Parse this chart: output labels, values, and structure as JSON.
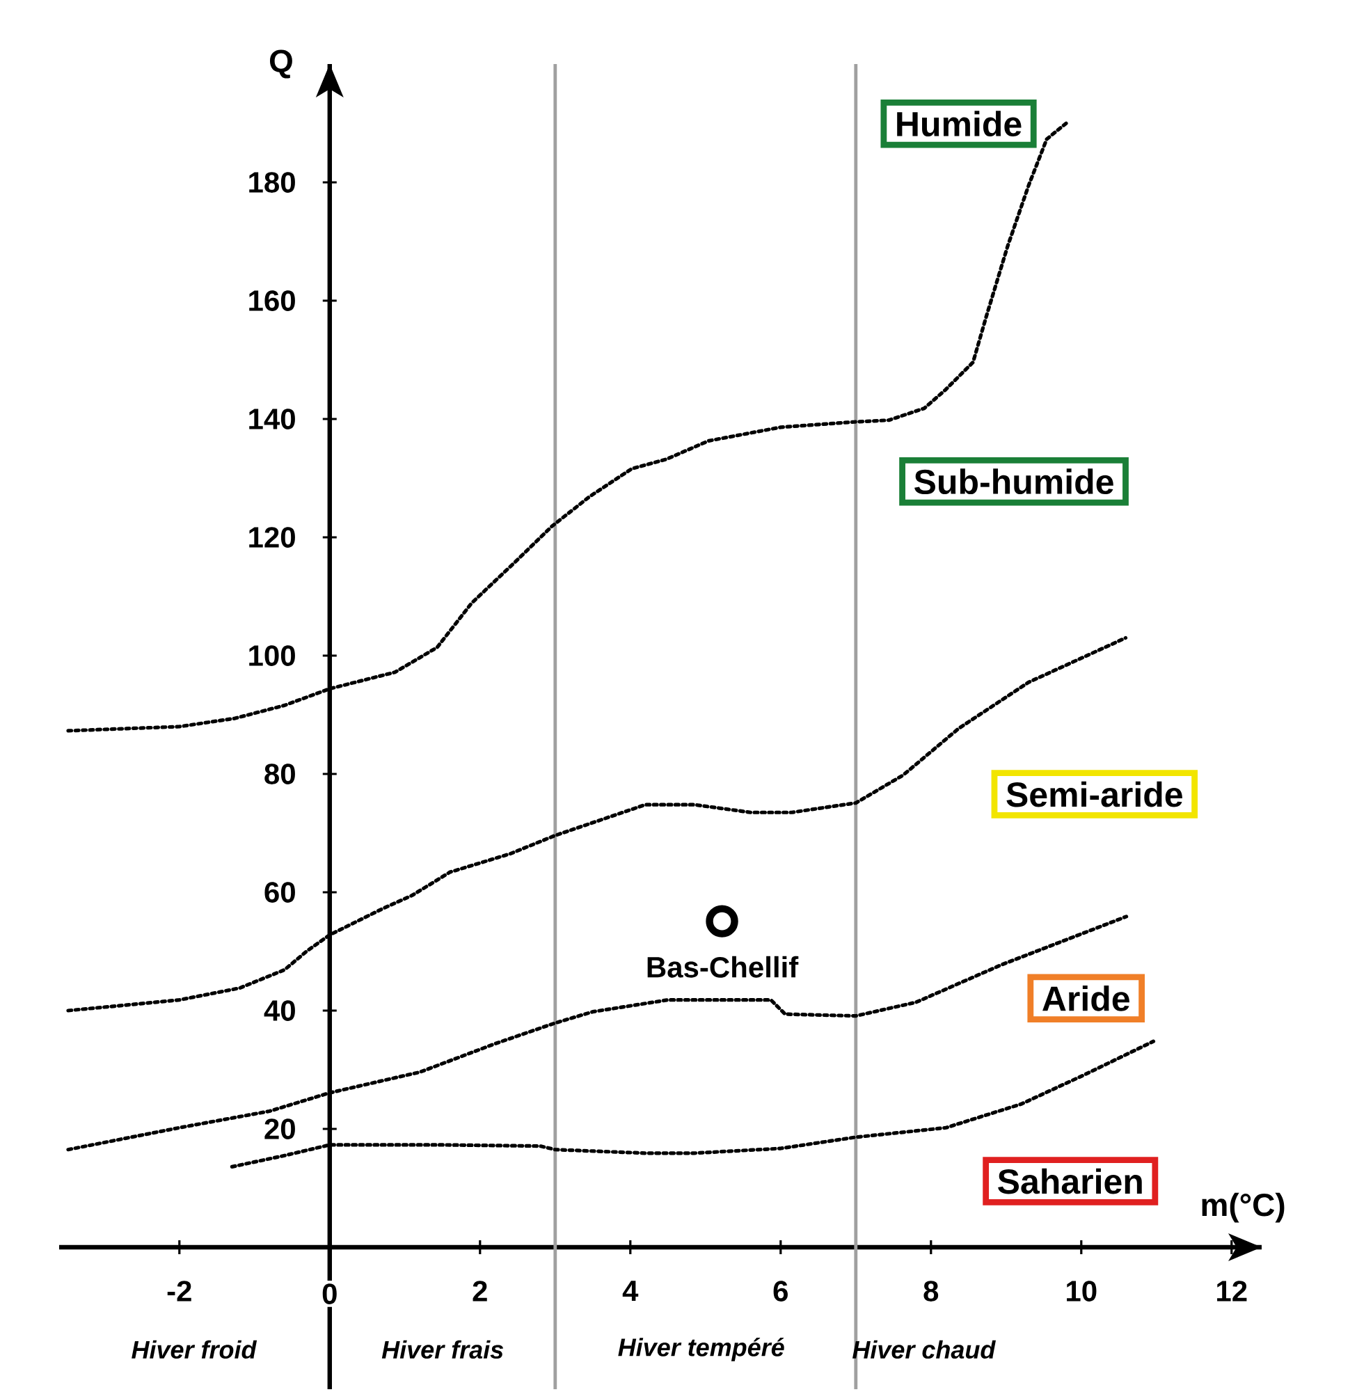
{
  "chart_data": {
    "type": "line",
    "xlabel": "m(°C)",
    "ylabel": "Q",
    "xlim": [
      -3.6,
      12.4
    ],
    "ylim": [
      -24,
      200
    ],
    "xticks": [
      -2,
      0,
      2,
      4,
      6,
      8,
      10,
      12
    ],
    "yticks": [
      20,
      40,
      60,
      80,
      100,
      120,
      140,
      160,
      180
    ],
    "line_style": "dotted",
    "marker": "none",
    "series": [
      {
        "color": "#000000",
        "x": [
          -3.48,
          -2,
          -1.26,
          -0.6,
          0,
          0.87,
          1.43,
          1.89,
          2.44,
          2.96,
          3.46,
          4.02,
          4.48,
          5.04,
          6,
          6.98,
          7.44,
          7.91,
          8.19,
          8.56,
          8.74,
          9.02,
          9.3,
          9.54,
          9.8
        ],
        "values": [
          87.3,
          88,
          89.4,
          91.6,
          94.4,
          97.2,
          101.4,
          108.9,
          115.5,
          121.9,
          126.9,
          131.6,
          133.2,
          136.3,
          138.6,
          139.5,
          139.8,
          141.8,
          144.9,
          149.6,
          157.5,
          169.2,
          179.5,
          187.3,
          190
        ]
      },
      {
        "color": "#000000",
        "x": [
          -3.48,
          -2,
          -1.2,
          -0.6,
          -0.3,
          0,
          0.7,
          1.1,
          1.6,
          2.4,
          3,
          4.2,
          4.85,
          5.6,
          6.15,
          7,
          7.63,
          8.37,
          9.3,
          10.59
        ],
        "values": [
          40,
          41.8,
          43.8,
          46.9,
          50.1,
          52.8,
          57.2,
          59.5,
          63.4,
          66.5,
          69.6,
          74.8,
          74.8,
          73.5,
          73.5,
          75.1,
          79.8,
          87.7,
          95.5,
          103
        ]
      },
      {
        "color": "#000000",
        "x": [
          -3.48,
          -2,
          -0.8,
          0,
          1.2,
          2.2,
          3,
          3.5,
          4.5,
          5.87,
          6.06,
          7,
          7.8,
          8.93,
          10.6
        ],
        "values": [
          16.5,
          20.2,
          23,
          26.1,
          29.6,
          34.4,
          37.9,
          39.8,
          41.8,
          41.8,
          39.4,
          39.1,
          41.4,
          47.7,
          55.9
        ]
      },
      {
        "color": "#000000",
        "x": [
          -1.3,
          -0.6,
          0,
          1.5,
          2.8,
          3,
          4.2,
          4.85,
          6,
          7,
          8.2,
          9.2,
          10,
          10.96
        ],
        "values": [
          13.6,
          15.5,
          17.3,
          17.3,
          17.1,
          16.5,
          15.9,
          15.9,
          16.7,
          18.6,
          20.2,
          24.2,
          28.9,
          34.8
        ]
      },
      {
        "type": "scatter",
        "name": "Bas-Chellif",
        "color": "#000000",
        "marker": "circle",
        "x": [
          5.22
        ],
        "values": [
          55.1
        ]
      }
    ],
    "ref_lines": [
      {
        "axis": "x",
        "value": 3,
        "color": "#a0a0a0"
      },
      {
        "axis": "x",
        "value": 7,
        "color": "#a0a0a0"
      }
    ],
    "annotations": [
      "Humide",
      "Sub-humide",
      "Semi-aride",
      "Aride",
      "Saharien",
      "Hiver froid",
      "Hiver frais",
      "Hiver tempéré",
      "Hiver chaud"
    ]
  }
}
